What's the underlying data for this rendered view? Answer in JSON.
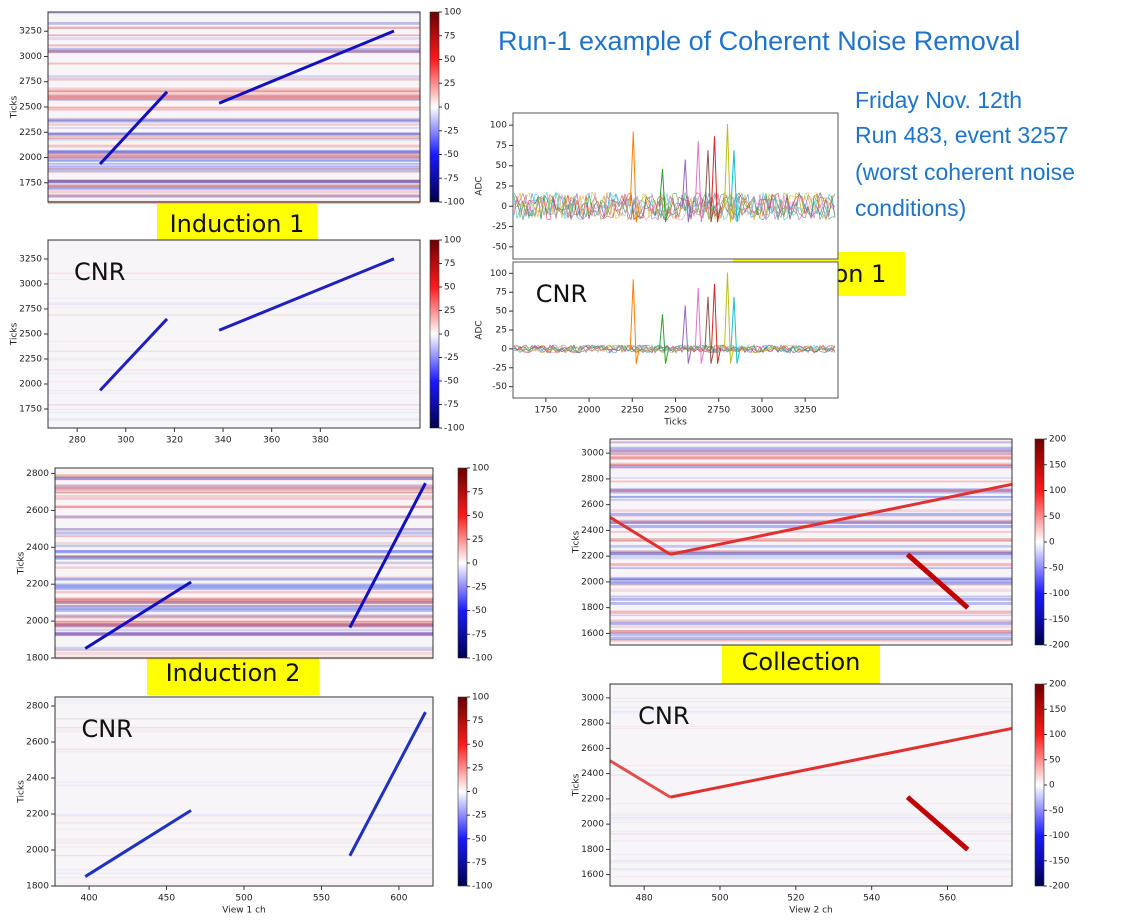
{
  "title": "Run-1 example of Coherent Noise Removal",
  "info": [
    "Friday Nov. 12th",
    "Run 483, event 3257",
    "(worst coherent noise",
    "conditions)"
  ],
  "tags": [
    "Induction 1",
    "Induction 1",
    "Induction 2",
    "Collection"
  ],
  "panels": [
    {
      "ylabel": "Ticks",
      "ylim": [
        1560,
        3440
      ],
      "yticks": [
        1750,
        2000,
        2250,
        2500,
        2750,
        3000,
        3250
      ],
      "cbar": {
        "lim": [
          -100,
          100
        ],
        "ticks": [
          100,
          75,
          50,
          25,
          0,
          -25,
          -50,
          -75,
          -100
        ]
      }
    },
    {
      "label": "CNR",
      "ylabel": "Ticks",
      "ylim": [
        1560,
        3440
      ],
      "yticks": [
        1750,
        2000,
        2250,
        2500,
        2750,
        3000,
        3250
      ],
      "xlim": [
        268,
        421
      ],
      "xticks": [
        280,
        300,
        320,
        340,
        360,
        380
      ],
      "cbar": {
        "lim": [
          -100,
          100
        ],
        "ticks": [
          100,
          75,
          50,
          25,
          0,
          -25,
          -50,
          -75,
          -100
        ]
      }
    },
    {
      "ylabel": "Ticks",
      "ylim": [
        1800,
        2830
      ],
      "yticks": [
        1800,
        2000,
        2200,
        2400,
        2600,
        2800
      ],
      "cbar": {
        "lim": [
          -100,
          100
        ],
        "ticks": [
          100,
          75,
          50,
          25,
          0,
          -25,
          -50,
          -75,
          -100
        ]
      }
    },
    {
      "label": "CNR",
      "ylabel": "Ticks",
      "ylim": [
        1800,
        2850
      ],
      "yticks": [
        1800,
        2000,
        2200,
        2400,
        2600,
        2800
      ],
      "xlim": [
        378,
        622
      ],
      "xticks": [
        400,
        450,
        500,
        550,
        600
      ],
      "xlabel": "View 1 ch",
      "cbar": {
        "lim": [
          -100,
          100
        ],
        "ticks": [
          100,
          75,
          50,
          25,
          0,
          -25,
          -50,
          -75,
          -100
        ]
      }
    },
    {
      "ylabel": "Ticks",
      "ylim": [
        1510,
        3110
      ],
      "yticks": [
        1600,
        1800,
        2000,
        2200,
        2400,
        2600,
        2800,
        3000
      ],
      "cbar": {
        "lim": [
          -200,
          200
        ],
        "ticks": [
          200,
          150,
          100,
          50,
          0,
          -50,
          -100,
          -150,
          -200
        ]
      }
    },
    {
      "label": "CNR",
      "ylabel": "Ticks",
      "ylim": [
        1510,
        3110
      ],
      "yticks": [
        1600,
        1800,
        2000,
        2200,
        2400,
        2600,
        2800,
        3000
      ],
      "xlim": [
        471,
        577
      ],
      "xticks": [
        480,
        500,
        520,
        540,
        560
      ],
      "xlabel": "View 2 ch",
      "cbar": {
        "lim": [
          -200,
          200
        ],
        "ticks": [
          200,
          150,
          100,
          50,
          0,
          -50,
          -100,
          -150,
          -200
        ]
      }
    }
  ],
  "waves": [
    {
      "ylabel": "ADC",
      "ylim": [
        -65,
        115
      ],
      "yticks": [
        100,
        75,
        50,
        25,
        0,
        -25,
        -50
      ]
    },
    {
      "label": "CNR",
      "ylabel": "ADC",
      "ylim": [
        -65,
        115
      ],
      "yticks": [
        100,
        75,
        50,
        25,
        0,
        -25,
        -50
      ],
      "xlim": [
        1560,
        3440
      ],
      "xticks": [
        1750,
        2000,
        2250,
        2500,
        2750,
        3000,
        3250
      ],
      "xlabel": "Ticks"
    }
  ]
}
